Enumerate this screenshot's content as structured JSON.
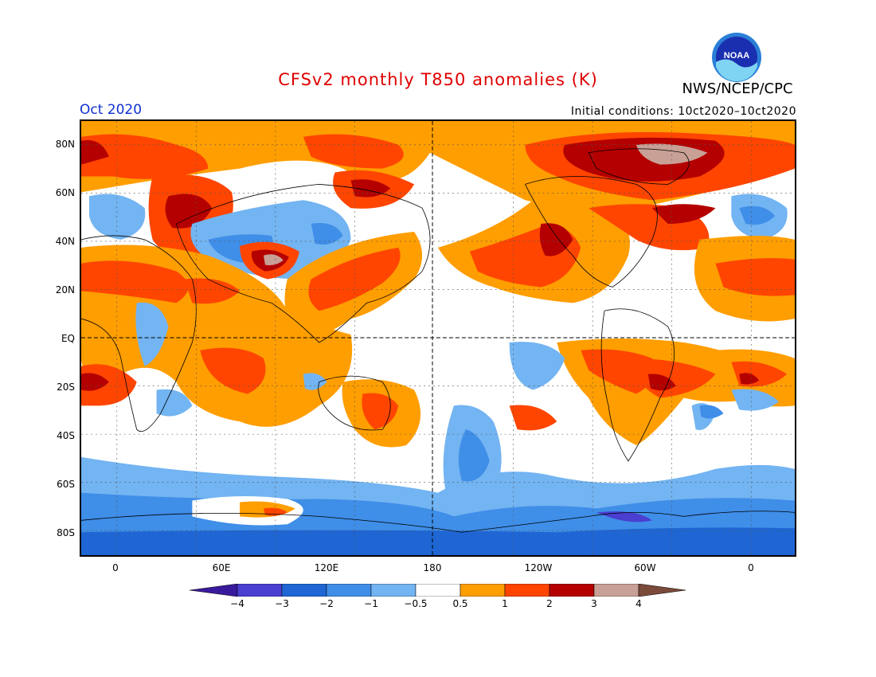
{
  "title": "CFSv2 monthly T850 anomalies (K)",
  "agency": "NWS/NCEP/CPC",
  "logo_text": "NOAA",
  "month": "Oct 2020",
  "init_conditions": "Initial conditions: 10ct2020–10ct2020",
  "lat_labels": [
    "80N",
    "60N",
    "40N",
    "20N",
    "EQ",
    "20S",
    "40S",
    "60S",
    "80S"
  ],
  "lon_labels": [
    "0",
    "60E",
    "120E",
    "180",
    "120W",
    "60W",
    "0"
  ],
  "colorbar": {
    "labels": [
      "−4",
      "−3",
      "−2",
      "−1",
      "−0.5",
      "0.5",
      "1",
      "2",
      "3",
      "4"
    ],
    "colors": [
      "#3a1a9c",
      "#4a3fd0",
      "#1f66d4",
      "#3f8ee8",
      "#73b4f2",
      "#ffffff",
      "#ff9e00",
      "#ff4500",
      "#b40000",
      "#c8a096",
      "#7a4a3a"
    ]
  },
  "colors": {
    "neg05": "#73b4f2",
    "neg1": "#3f8ee8",
    "neg2": "#1f66d4",
    "neg3": "#4a3fd0",
    "pos05": "#ff9e00",
    "pos1": "#ff4500",
    "pos2": "#b40000",
    "pos3": "#c8a096",
    "title": "#e00000",
    "month": "#1030d0"
  }
}
